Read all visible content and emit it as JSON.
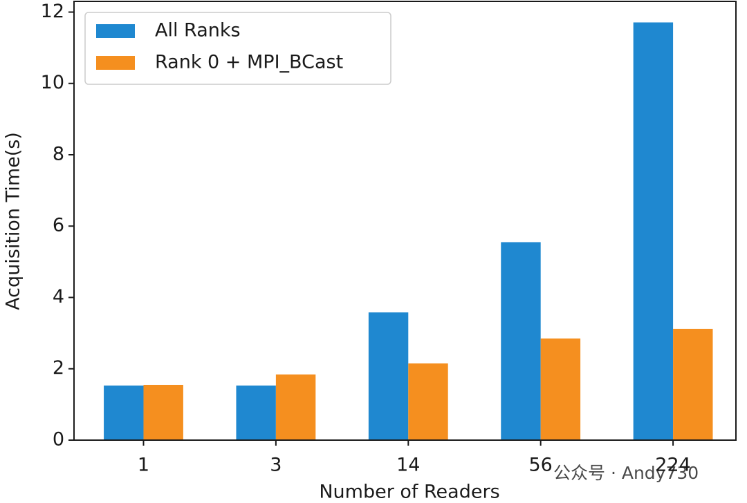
{
  "chart_data": {
    "type": "bar",
    "xlabel": "Number of Readers",
    "ylabel": "Acquisition Time(s)",
    "categories": [
      "1",
      "3",
      "14",
      "56",
      "224"
    ],
    "series": [
      {
        "name": "All Ranks",
        "color": "#1f88d0",
        "values": [
          1.53,
          1.53,
          3.58,
          5.55,
          11.71
        ]
      },
      {
        "name": "Rank 0 + MPI_BCast",
        "color": "#f58f1f",
        "values": [
          1.55,
          1.84,
          2.15,
          2.85,
          3.12
        ]
      }
    ],
    "ylim": [
      0,
      12.3
    ],
    "yticks": [
      0,
      2,
      4,
      6,
      8,
      10,
      12
    ],
    "legend": "upper-left",
    "annotation": "公众号 · Andy730"
  }
}
